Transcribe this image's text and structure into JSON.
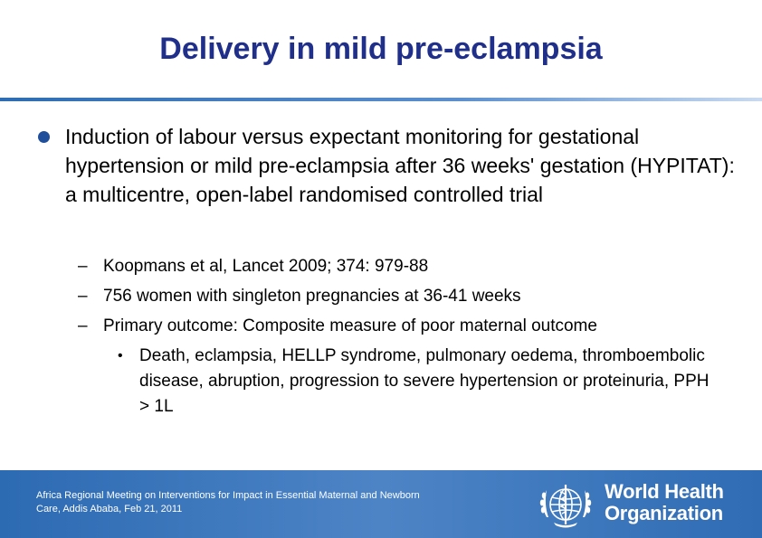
{
  "slide": {
    "title": "Delivery in mild pre-eclampsia",
    "bullet": "Induction of labour versus expectant monitoring for gestational hypertension or mild pre-eclampsia after 36 weeks' gestation (HYPITAT): a multicentre, open-label randomised controlled trial",
    "sub_items": [
      "Koopmans et al, Lancet 2009; 374: 979-88",
      "756 women with singleton pregnancies at 36-41 weeks",
      "Primary outcome: Composite measure of poor maternal outcome"
    ],
    "sub_sub_item": "Death, eclampsia, HELLP syndrome, pulmonary oedema, thromboembolic disease, abruption, progression to severe hypertension or proteinuria, PPH > 1L",
    "dash_glyph": "–",
    "bullet_glyph": "•"
  },
  "footer": {
    "meeting_line1": "Africa Regional Meeting on Interventions for Impact in Essential Maternal and Newborn",
    "meeting_line2": "Care, Addis Ababa, Feb 21, 2011",
    "org_line1": "World Health",
    "org_line2": "Organization",
    "logo_icon": "who-emblem-icon"
  },
  "colors": {
    "title": "#1f2f8a",
    "bullet_dot": "#1f4e9a",
    "footer_bg": "#2c6ab2"
  }
}
